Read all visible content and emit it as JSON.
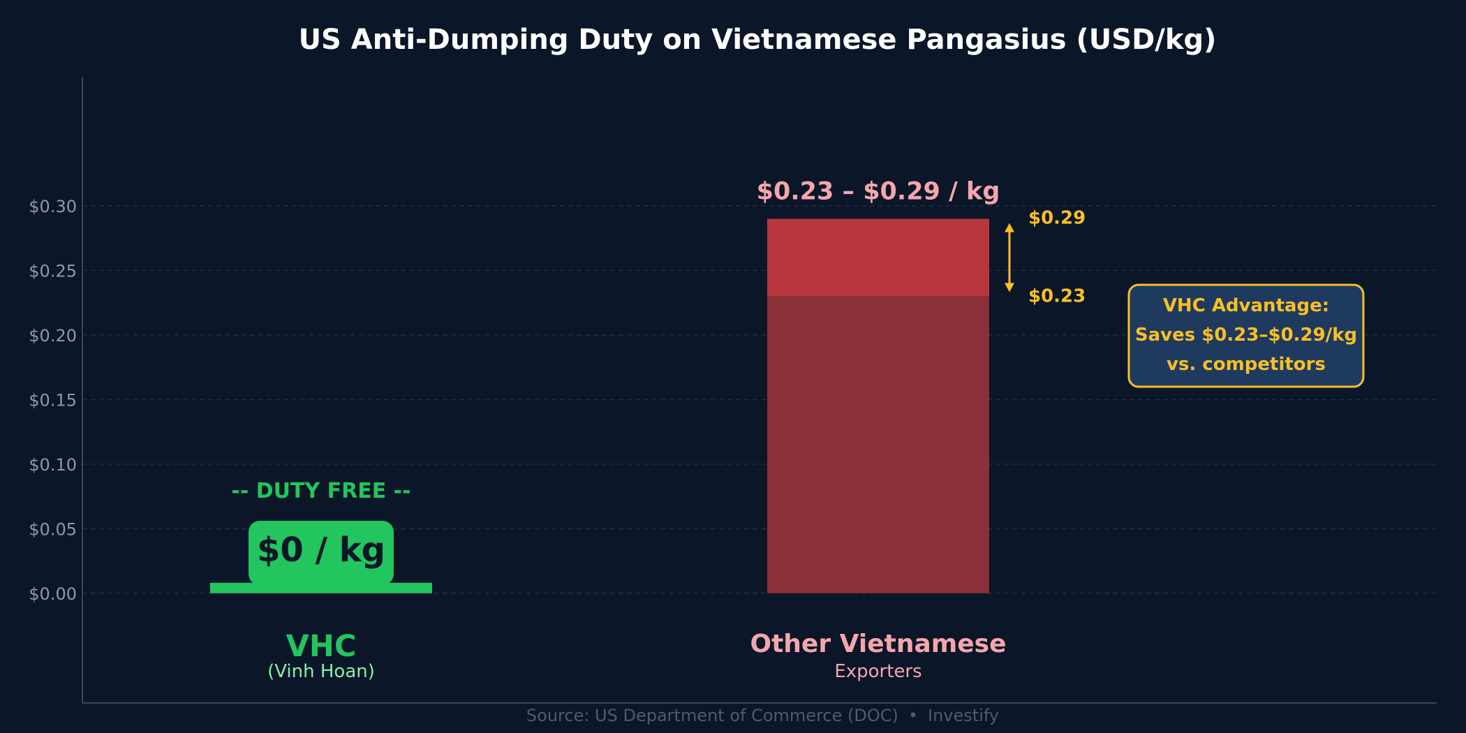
{
  "chart_data": {
    "type": "bar",
    "title": "US Anti-Dumping Duty on Vietnamese Pangasius (USD/kg)",
    "xlabel": "",
    "ylabel": "",
    "ylim": [
      -0.085,
      0.4
    ],
    "y_ticks": [
      0.0,
      0.05,
      0.1,
      0.15,
      0.2,
      0.25,
      0.3
    ],
    "y_tick_labels": [
      "$0.00",
      "$0.05",
      "$0.10",
      "$0.15",
      "$0.20",
      "$0.25",
      "$0.30"
    ],
    "grid": true,
    "categories": [
      {
        "name": "VHC",
        "sub": "(Vinh Hoan)"
      },
      {
        "name": "Other Vietnamese",
        "sub": "Exporters"
      }
    ],
    "series": [
      {
        "values": [
          0,
          0.23
        ]
      },
      {
        "values": [
          0,
          0.06
        ]
      }
    ],
    "range": {
      "low": 0.23,
      "high": 0.29,
      "low_label": "$0.23",
      "high_label": "$0.29"
    },
    "annotations": {
      "duty_free": "-- DUTY FREE --",
      "vhc_value": "$0 / kg",
      "other_value": "$0.23 – $0.29 / kg",
      "advantage_lines": [
        "VHC Advantage:",
        "Saves $0.23–$0.29/kg",
        "vs. competitors"
      ]
    },
    "colors": {
      "background": "#0b1628",
      "grid": "#1f2e42",
      "tick_text": "#8a9ab0",
      "vhc": "#22c55e",
      "vhc_sub": "#86efac",
      "other_base": "#8b2f38",
      "other_top": "#b8373e",
      "other_label": "#f4a6ad",
      "highlight": "#fbbf24",
      "callout_bg": "#1e3a5f"
    }
  },
  "footer": {
    "source": "Source: US Department of Commerce (DOC)",
    "separator": "•",
    "brand": "Investify"
  }
}
